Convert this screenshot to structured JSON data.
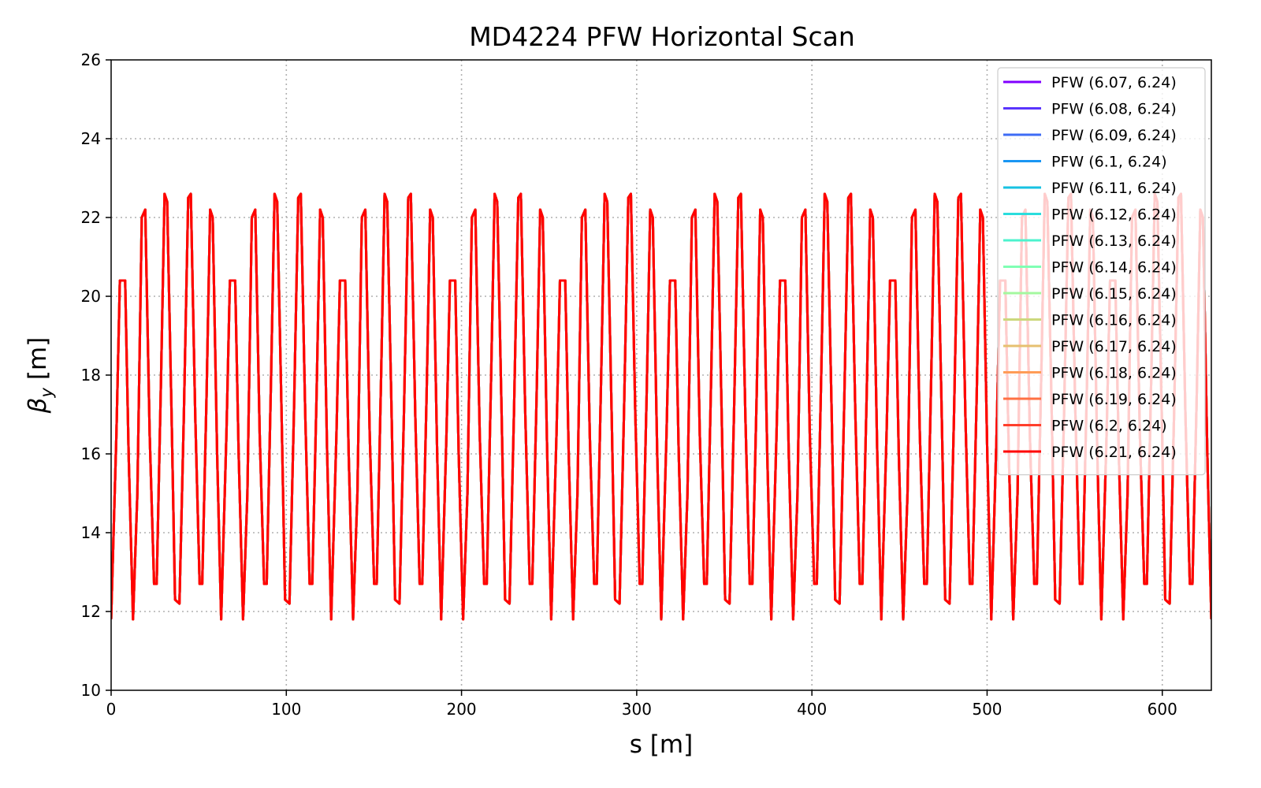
{
  "chart_data": {
    "type": "line",
    "title": "MD4224 PFW Horizontal Scan",
    "xlabel": "s [m]",
    "ylabel_symbol": "β",
    "ylabel_subscript": "y",
    "ylabel_unit": "[m]",
    "xlim": [
      0,
      628
    ],
    "ylim": [
      10,
      26
    ],
    "xticks": [
      0,
      100,
      200,
      300,
      400,
      500,
      600
    ],
    "yticks": [
      10,
      12,
      14,
      16,
      18,
      20,
      22,
      24,
      26
    ],
    "grid": true,
    "legend_position": "top-right",
    "lattice_period": 62.8,
    "cell_profile": [
      [
        0,
        11.8
      ],
      [
        3,
        16.5
      ],
      [
        5,
        20.4
      ],
      [
        8,
        20.4
      ],
      [
        10,
        16.0
      ],
      [
        12.5,
        11.8
      ],
      [
        15,
        15.0
      ],
      [
        17.5,
        22.0
      ],
      [
        19.5,
        22.2
      ],
      [
        22,
        16.5
      ],
      [
        24.5,
        12.7
      ],
      [
        26,
        12.7
      ],
      [
        28.5,
        18.0
      ],
      [
        30.5,
        22.6
      ],
      [
        32,
        22.4
      ],
      [
        34.5,
        17.0
      ],
      [
        36.5,
        12.3
      ],
      [
        39,
        12.2
      ],
      [
        41.5,
        17.0
      ],
      [
        44,
        22.5
      ],
      [
        45.5,
        22.6
      ],
      [
        48,
        17.0
      ],
      [
        50.5,
        12.7
      ],
      [
        52,
        12.7
      ],
      [
        54.5,
        17.5
      ],
      [
        56.5,
        22.2
      ],
      [
        58,
        22.0
      ],
      [
        60.5,
        16.0
      ],
      [
        62.8,
        11.8
      ]
    ],
    "series": [
      {
        "name": "PFW (6.07, 6.24)",
        "color": "#8000ff"
      },
      {
        "name": "PFW (6.08, 6.24)",
        "color": "#5a35fd"
      },
      {
        "name": "PFW (6.09, 6.24)",
        "color": "#3e6cf5"
      },
      {
        "name": "PFW (6.1, 6.24)",
        "color": "#1996f3"
      },
      {
        "name": "PFW (6.11, 6.24)",
        "color": "#17c2e2"
      },
      {
        "name": "PFW (6.12, 6.24)",
        "color": "#2adddd"
      },
      {
        "name": "PFW (6.13, 6.24)",
        "color": "#4df3ce"
      },
      {
        "name": "PFW (6.14, 6.24)",
        "color": "#80ffb4"
      },
      {
        "name": "PFW (6.15, 6.24)",
        "color": "#a4f89f"
      },
      {
        "name": "PFW (6.16, 6.24)",
        "color": "#ccd87d"
      },
      {
        "name": "PFW (6.17, 6.24)",
        "color": "#e6c070"
      },
      {
        "name": "PFW (6.18, 6.24)",
        "color": "#ff9c57"
      },
      {
        "name": "PFW (6.19, 6.24)",
        "color": "#ff7043"
      },
      {
        "name": "PFW (6.2, 6.24)",
        "color": "#ff3f2b"
      },
      {
        "name": "PFW (6.21, 6.24)",
        "color": "#ff0000"
      }
    ]
  }
}
